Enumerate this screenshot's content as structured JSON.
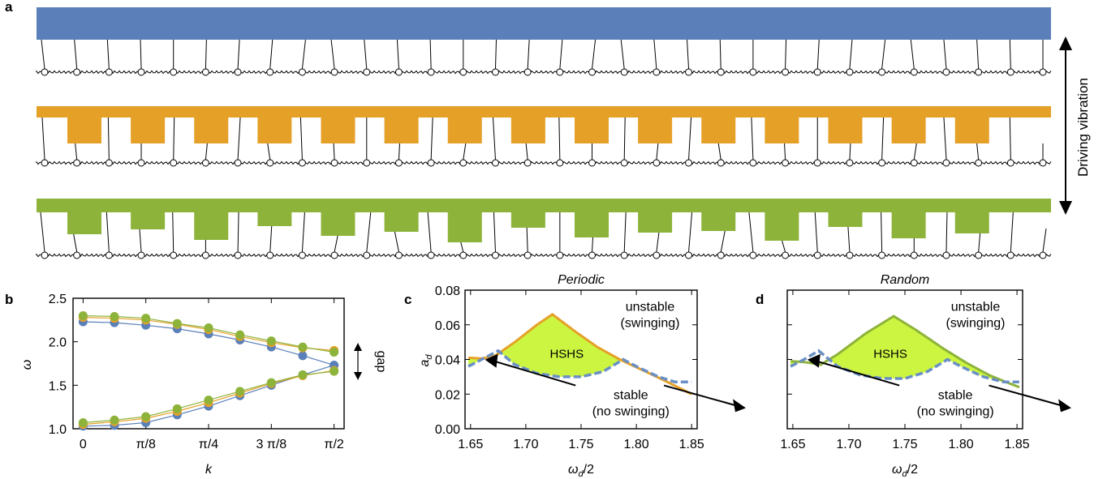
{
  "panel_labels": {
    "a": "a",
    "b": "b",
    "c": "c",
    "d": "d"
  },
  "colors": {
    "blue": "#5b80b9",
    "orange": "#e5a027",
    "green": "#8db33a",
    "fill": "#ccf542",
    "dash": "#6a8fc5"
  },
  "panel_a": {
    "driving_label": "Driving vibration",
    "strips": [
      {
        "name": "uniform",
        "color": "#5b80b9"
      },
      {
        "name": "periodic",
        "color": "#e5a027"
      },
      {
        "name": "random",
        "color": "#8db33a"
      }
    ]
  },
  "chart_data": [
    {
      "panel": "b",
      "type": "line",
      "xlabel": "k",
      "ylabel": "ω",
      "x_ticks": [
        "0",
        "π/8",
        "π/4",
        "3 π/8",
        "π/2"
      ],
      "x_values": [
        0,
        0.125,
        0.25,
        0.375,
        0.5
      ],
      "y_ticks": [
        "1.0",
        "1.5",
        "2.0",
        "2.5"
      ],
      "xlim": [
        -0.02,
        0.52
      ],
      "ylim": [
        1.0,
        2.5
      ],
      "annotation": "gap",
      "x": [
        0,
        0.0625,
        0.125,
        0.1875,
        0.25,
        0.3125,
        0.375,
        0.4375,
        0.5
      ],
      "series": [
        {
          "color": "#5b80b9",
          "values": [
            2.23,
            2.22,
            2.19,
            2.15,
            2.09,
            2.02,
            1.94,
            1.84,
            1.73
          ]
        },
        {
          "color": "#5b80b9",
          "values": [
            1.03,
            1.04,
            1.07,
            1.16,
            1.26,
            1.38,
            1.5,
            1.62,
            1.73
          ]
        },
        {
          "color": "#e5a027",
          "values": [
            2.28,
            2.27,
            2.25,
            2.2,
            2.14,
            2.06,
            1.99,
            1.93,
            1.9
          ]
        },
        {
          "color": "#e5a027",
          "values": [
            1.05,
            1.08,
            1.12,
            1.2,
            1.3,
            1.41,
            1.52,
            1.61,
            1.67
          ]
        },
        {
          "color": "#8db33a",
          "values": [
            2.3,
            2.29,
            2.27,
            2.21,
            2.16,
            2.08,
            2.01,
            1.94,
            1.88
          ]
        },
        {
          "color": "#8db33a",
          "values": [
            1.07,
            1.1,
            1.14,
            1.23,
            1.33,
            1.43,
            1.53,
            1.62,
            1.66
          ]
        }
      ]
    },
    {
      "panel": "c",
      "type": "line",
      "title": "Periodic",
      "xlabel": "ωd/2",
      "ylabel": "ad",
      "x_ticks": [
        "1.65",
        "1.70",
        "1.75",
        "1.80",
        "1.85"
      ],
      "x_values": [
        1.65,
        1.7,
        1.75,
        1.8,
        1.85
      ],
      "y_ticks": [
        "0.00",
        "0.02",
        "0.04",
        "0.06",
        "0.08"
      ],
      "y_values": [
        0,
        0.02,
        0.04,
        0.06,
        0.08
      ],
      "xlim": [
        1.645,
        1.855
      ],
      "ylim": [
        0,
        0.08
      ],
      "region_label": "HSHS",
      "unstable_label": [
        "unstable",
        "(swinging)"
      ],
      "stable_label": [
        "stable",
        "(no swinging)"
      ],
      "series": [
        {
          "name": "solid",
          "color": "#e5a027",
          "style": "solid",
          "x": [
            1.648,
            1.66,
            1.672,
            1.69,
            1.71,
            1.724,
            1.745,
            1.765,
            1.785,
            1.805,
            1.825,
            1.85
          ],
          "y": [
            0.041,
            0.0405,
            0.042,
            0.05,
            0.06,
            0.066,
            0.056,
            0.047,
            0.04,
            0.034,
            0.028,
            0.02
          ]
        },
        {
          "name": "dashed",
          "color": "#6a8fc5",
          "style": "dashed",
          "x": [
            1.648,
            1.66,
            1.675,
            1.69,
            1.71,
            1.73,
            1.75,
            1.77,
            1.788,
            1.8,
            1.82,
            1.835,
            1.85
          ],
          "y": [
            0.036,
            0.04,
            0.045,
            0.037,
            0.032,
            0.03,
            0.03,
            0.033,
            0.04,
            0.036,
            0.03,
            0.027,
            0.027
          ]
        }
      ]
    },
    {
      "panel": "d",
      "type": "line",
      "title": "Random",
      "xlabel": "ωd/2",
      "ylabel": "",
      "x_ticks": [
        "1.65",
        "1.70",
        "1.75",
        "1.80",
        "1.85"
      ],
      "x_values": [
        1.65,
        1.7,
        1.75,
        1.8,
        1.85
      ],
      "xlim": [
        1.645,
        1.855
      ],
      "ylim": [
        0,
        0.08
      ],
      "region_label": "HSHS",
      "unstable_label": [
        "unstable",
        "(swinging)"
      ],
      "stable_label": [
        "stable",
        "(no swinging)"
      ],
      "series": [
        {
          "name": "solid",
          "color": "#8db33a",
          "style": "solid",
          "x": [
            1.648,
            1.66,
            1.675,
            1.69,
            1.715,
            1.74,
            1.76,
            1.785,
            1.805,
            1.825,
            1.84,
            1.852
          ],
          "y": [
            0.039,
            0.0385,
            0.037,
            0.043,
            0.055,
            0.065,
            0.057,
            0.046,
            0.038,
            0.031,
            0.027,
            0.024
          ]
        },
        {
          "name": "dashed",
          "color": "#6a8fc5",
          "style": "dashed",
          "x": [
            1.648,
            1.66,
            1.673,
            1.69,
            1.71,
            1.73,
            1.75,
            1.77,
            1.788,
            1.8,
            1.82,
            1.838,
            1.852
          ],
          "y": [
            0.036,
            0.04,
            0.045,
            0.036,
            0.031,
            0.029,
            0.029,
            0.033,
            0.04,
            0.036,
            0.03,
            0.027,
            0.027
          ]
        }
      ]
    }
  ]
}
